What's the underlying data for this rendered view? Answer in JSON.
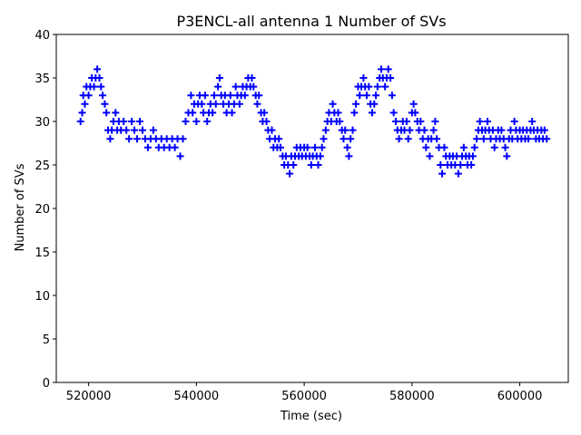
{
  "chart_data": {
    "type": "scatter",
    "title": "P3ENCL-all antenna 1 Number of SVs",
    "xlabel": "Time (sec)",
    "ylabel": "Number of SVs",
    "xlim": [
      514000,
      609000
    ],
    "ylim": [
      0,
      40
    ],
    "xticks": [
      520000,
      540000,
      560000,
      580000,
      600000
    ],
    "xtick_labels": [
      "520000",
      "540000",
      "560000",
      "580000",
      "600000"
    ],
    "yticks": [
      0,
      5,
      10,
      15,
      20,
      25,
      30,
      35,
      40
    ],
    "ytick_labels": [
      "0",
      "5",
      "10",
      "15",
      "20",
      "25",
      "30",
      "35",
      "40"
    ],
    "marker": "plus",
    "series": [
      {
        "name": "antenna 1",
        "color": "#0000ff",
        "points": [
          [
            518500,
            30
          ],
          [
            518800,
            31
          ],
          [
            519000,
            33
          ],
          [
            519300,
            32
          ],
          [
            519600,
            34
          ],
          [
            520000,
            33
          ],
          [
            520300,
            34
          ],
          [
            520600,
            35
          ],
          [
            521000,
            34
          ],
          [
            521300,
            35
          ],
          [
            521600,
            36
          ],
          [
            522000,
            35
          ],
          [
            522300,
            34
          ],
          [
            522600,
            33
          ],
          [
            523000,
            32
          ],
          [
            523300,
            31
          ],
          [
            523600,
            29
          ],
          [
            524000,
            28
          ],
          [
            524300,
            29
          ],
          [
            524600,
            30
          ],
          [
            525000,
            31
          ],
          [
            525300,
            29
          ],
          [
            525600,
            30
          ],
          [
            526000,
            29
          ],
          [
            526500,
            30
          ],
          [
            527000,
            29
          ],
          [
            527500,
            28
          ],
          [
            528000,
            30
          ],
          [
            528500,
            29
          ],
          [
            529000,
            28
          ],
          [
            529500,
            30
          ],
          [
            530000,
            29
          ],
          [
            530500,
            28
          ],
          [
            531000,
            27
          ],
          [
            531500,
            28
          ],
          [
            532000,
            29
          ],
          [
            532500,
            28
          ],
          [
            533000,
            27
          ],
          [
            533500,
            28
          ],
          [
            534000,
            27
          ],
          [
            534500,
            28
          ],
          [
            535000,
            27
          ],
          [
            535500,
            28
          ],
          [
            536000,
            27
          ],
          [
            536500,
            28
          ],
          [
            537000,
            26
          ],
          [
            537500,
            28
          ],
          [
            538000,
            30
          ],
          [
            538500,
            31
          ],
          [
            539000,
            33
          ],
          [
            539300,
            31
          ],
          [
            539600,
            32
          ],
          [
            540000,
            30
          ],
          [
            540300,
            32
          ],
          [
            540600,
            33
          ],
          [
            541000,
            32
          ],
          [
            541300,
            31
          ],
          [
            541600,
            33
          ],
          [
            542000,
            30
          ],
          [
            542300,
            31
          ],
          [
            542600,
            32
          ],
          [
            543000,
            31
          ],
          [
            543300,
            33
          ],
          [
            543600,
            32
          ],
          [
            544000,
            34
          ],
          [
            544300,
            35
          ],
          [
            544600,
            33
          ],
          [
            545000,
            32
          ],
          [
            545300,
            33
          ],
          [
            545600,
            31
          ],
          [
            546000,
            32
          ],
          [
            546300,
            33
          ],
          [
            546600,
            31
          ],
          [
            547000,
            32
          ],
          [
            547300,
            34
          ],
          [
            547600,
            33
          ],
          [
            548000,
            32
          ],
          [
            548300,
            33
          ],
          [
            548600,
            34
          ],
          [
            549000,
            33
          ],
          [
            549300,
            34
          ],
          [
            549600,
            35
          ],
          [
            550000,
            34
          ],
          [
            550300,
            35
          ],
          [
            550600,
            34
          ],
          [
            551000,
            33
          ],
          [
            551300,
            32
          ],
          [
            551600,
            33
          ],
          [
            552000,
            31
          ],
          [
            552300,
            30
          ],
          [
            552600,
            31
          ],
          [
            553000,
            30
          ],
          [
            553300,
            29
          ],
          [
            553600,
            28
          ],
          [
            554000,
            29
          ],
          [
            554300,
            27
          ],
          [
            554600,
            28
          ],
          [
            555000,
            27
          ],
          [
            555300,
            28
          ],
          [
            555600,
            27
          ],
          [
            556000,
            26
          ],
          [
            556300,
            25
          ],
          [
            556600,
            26
          ],
          [
            557000,
            25
          ],
          [
            557300,
            24
          ],
          [
            557600,
            26
          ],
          [
            558000,
            25
          ],
          [
            558300,
            26
          ],
          [
            558600,
            27
          ],
          [
            559000,
            26
          ],
          [
            559300,
            27
          ],
          [
            559600,
            26
          ],
          [
            560000,
            27
          ],
          [
            560300,
            26
          ],
          [
            560600,
            27
          ],
          [
            561000,
            26
          ],
          [
            561300,
            25
          ],
          [
            561600,
            26
          ],
          [
            562000,
            27
          ],
          [
            562300,
            26
          ],
          [
            562600,
            25
          ],
          [
            563000,
            26
          ],
          [
            563300,
            27
          ],
          [
            563600,
            28
          ],
          [
            564000,
            29
          ],
          [
            564300,
            30
          ],
          [
            564600,
            31
          ],
          [
            565000,
            30
          ],
          [
            565300,
            32
          ],
          [
            565600,
            31
          ],
          [
            566000,
            30
          ],
          [
            566300,
            31
          ],
          [
            566600,
            30
          ],
          [
            567000,
            29
          ],
          [
            567300,
            28
          ],
          [
            567600,
            29
          ],
          [
            568000,
            27
          ],
          [
            568300,
            26
          ],
          [
            568600,
            28
          ],
          [
            569000,
            29
          ],
          [
            569300,
            31
          ],
          [
            569600,
            32
          ],
          [
            570000,
            34
          ],
          [
            570300,
            33
          ],
          [
            570600,
            34
          ],
          [
            571000,
            35
          ],
          [
            571300,
            34
          ],
          [
            571600,
            33
          ],
          [
            572000,
            34
          ],
          [
            572300,
            32
          ],
          [
            572600,
            31
          ],
          [
            573000,
            32
          ],
          [
            573300,
            33
          ],
          [
            573600,
            34
          ],
          [
            574000,
            35
          ],
          [
            574300,
            36
          ],
          [
            574600,
            35
          ],
          [
            575000,
            34
          ],
          [
            575300,
            35
          ],
          [
            575600,
            36
          ],
          [
            576000,
            35
          ],
          [
            576300,
            33
          ],
          [
            576600,
            31
          ],
          [
            577000,
            30
          ],
          [
            577300,
            29
          ],
          [
            577600,
            28
          ],
          [
            578000,
            29
          ],
          [
            578300,
            30
          ],
          [
            578600,
            29
          ],
          [
            579000,
            30
          ],
          [
            579300,
            28
          ],
          [
            579600,
            29
          ],
          [
            580000,
            31
          ],
          [
            580300,
            32
          ],
          [
            580600,
            31
          ],
          [
            581000,
            30
          ],
          [
            581300,
            29
          ],
          [
            581600,
            30
          ],
          [
            582000,
            28
          ],
          [
            582300,
            29
          ],
          [
            582600,
            27
          ],
          [
            583000,
            28
          ],
          [
            583300,
            26
          ],
          [
            583600,
            28
          ],
          [
            584000,
            29
          ],
          [
            584300,
            30
          ],
          [
            584600,
            28
          ],
          [
            585000,
            27
          ],
          [
            585300,
            25
          ],
          [
            585600,
            24
          ],
          [
            586000,
            27
          ],
          [
            586300,
            26
          ],
          [
            586600,
            25
          ],
          [
            587000,
            26
          ],
          [
            587300,
            25
          ],
          [
            587600,
            26
          ],
          [
            588000,
            25
          ],
          [
            588300,
            26
          ],
          [
            588600,
            24
          ],
          [
            589000,
            25
          ],
          [
            589300,
            26
          ],
          [
            589600,
            27
          ],
          [
            590000,
            26
          ],
          [
            590300,
            25
          ],
          [
            590600,
            26
          ],
          [
            591000,
            25
          ],
          [
            591300,
            26
          ],
          [
            591600,
            27
          ],
          [
            592000,
            28
          ],
          [
            592300,
            29
          ],
          [
            592600,
            30
          ],
          [
            593000,
            29
          ],
          [
            593300,
            28
          ],
          [
            593600,
            29
          ],
          [
            594000,
            30
          ],
          [
            594300,
            29
          ],
          [
            594600,
            28
          ],
          [
            595000,
            29
          ],
          [
            595300,
            27
          ],
          [
            595600,
            28
          ],
          [
            596000,
            29
          ],
          [
            596300,
            28
          ],
          [
            596600,
            29
          ],
          [
            597000,
            28
          ],
          [
            597300,
            27
          ],
          [
            597600,
            26
          ],
          [
            598000,
            28
          ],
          [
            598300,
            29
          ],
          [
            598600,
            28
          ],
          [
            599000,
            30
          ],
          [
            599300,
            29
          ],
          [
            599600,
            28
          ],
          [
            600000,
            29
          ],
          [
            600300,
            28
          ],
          [
            600600,
            29
          ],
          [
            601000,
            28
          ],
          [
            601300,
            29
          ],
          [
            601600,
            28
          ],
          [
            602000,
            29
          ],
          [
            602300,
            30
          ],
          [
            602600,
            29
          ],
          [
            603000,
            28
          ],
          [
            603300,
            29
          ],
          [
            603600,
            28
          ],
          [
            604000,
            29
          ],
          [
            604300,
            28
          ],
          [
            604600,
            29
          ],
          [
            605000,
            28
          ]
        ]
      }
    ]
  }
}
